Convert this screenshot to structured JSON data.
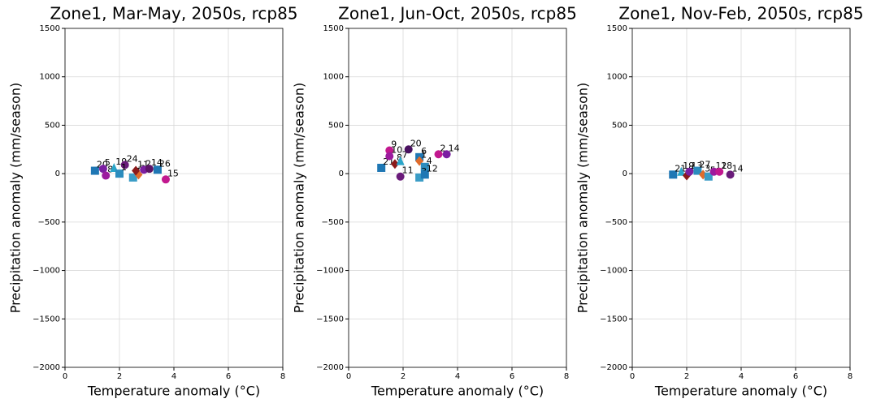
{
  "chart_data": [
    {
      "type": "scatter",
      "title": "Zone1, Mar-May, 2050s, rcp85",
      "x_label": "Temperature anomaly ($^\\circ$C)",
      "y_label": "Precipitation anomaly (mm/season)",
      "xlim": [
        0,
        8
      ],
      "ylim": [
        -2000,
        1500
      ],
      "xticks": [
        0,
        2,
        4,
        6,
        8
      ],
      "yticks": [
        {
          "value": -2000,
          "label": "−2000"
        },
        {
          "value": -1500,
          "label": "−1500"
        },
        {
          "value": -1000,
          "label": "−1000"
        },
        {
          "value": -500,
          "label": "−500"
        },
        0,
        500,
        1000,
        1500
      ],
      "grid": true,
      "points": [
        {
          "label": 20,
          "x": 1.1,
          "y": 30,
          "marker": "s",
          "color": "#1f77b4"
        },
        {
          "label": 5,
          "x": 1.4,
          "y": 50,
          "marker": "o",
          "color": "#7b1fa2"
        },
        {
          "label": 8,
          "x": 1.5,
          "y": -20,
          "marker": "o",
          "color": "#9c1b9e"
        },
        {
          "label": 19,
          "x": 1.8,
          "y": 60,
          "marker": "^",
          "color": "#2aa5c9"
        },
        {
          "label": 24,
          "x": 2.2,
          "y": 90,
          "marker": "o",
          "color": "#6a1b7a"
        },
        {
          "label": 1,
          "x": 2.0,
          "y": 0,
          "marker": "s",
          "color": "#2b8cbe"
        },
        {
          "label": 7,
          "x": 2.5,
          "y": -40,
          "marker": "s",
          "color": "#3a9cc6"
        },
        {
          "label": 3,
          "x": 2.7,
          "y": -10,
          "marker": "D",
          "color": "#e06c2c"
        },
        {
          "label": 11,
          "x": 2.6,
          "y": 30,
          "marker": "D",
          "color": "#8b1a1a"
        },
        {
          "label": 2,
          "x": 2.9,
          "y": 40,
          "marker": "o",
          "color": "#7b1fa2"
        },
        {
          "label": 14,
          "x": 3.1,
          "y": 50,
          "marker": "o",
          "color": "#5b1466"
        },
        {
          "label": 26,
          "x": 3.4,
          "y": 40,
          "marker": "s",
          "color": "#1f77b4"
        },
        {
          "label": 15,
          "x": 3.7,
          "y": -60,
          "marker": "o",
          "color": "#c2188f"
        }
      ]
    },
    {
      "type": "scatter",
      "title": "Zone1, Jun-Oct, 2050s, rcp85",
      "x_label": "Temperature anomaly ($^\\circ$C)",
      "y_label": "Precipitation anomaly (mm/season)",
      "xlim": [
        0,
        8
      ],
      "ylim": [
        -2000,
        1500
      ],
      "xticks": [
        0,
        2,
        4,
        6,
        8
      ],
      "yticks": [
        {
          "value": -2000,
          "label": "−2000"
        },
        {
          "value": -1500,
          "label": "−1500"
        },
        {
          "value": -1000,
          "label": "−1000"
        },
        {
          "value": -500,
          "label": "−500"
        },
        0,
        500,
        1000,
        1500
      ],
      "grid": true,
      "points": [
        {
          "label": 21,
          "x": 1.2,
          "y": 60,
          "marker": "s",
          "color": "#1f77b4"
        },
        {
          "label": 9,
          "x": 1.5,
          "y": 240,
          "marker": "o",
          "color": "#c2188f"
        },
        {
          "label": 10,
          "x": 1.5,
          "y": 180,
          "marker": "o",
          "color": "#9c1b9e"
        },
        {
          "label": 8,
          "x": 1.7,
          "y": 100,
          "marker": "D",
          "color": "#8b1a1a"
        },
        {
          "label": 7,
          "x": 1.9,
          "y": 130,
          "marker": "^",
          "color": "#2aa5c9"
        },
        {
          "label": 11,
          "x": 1.9,
          "y": -30,
          "marker": "o",
          "color": "#6a1b7a"
        },
        {
          "label": 20,
          "x": 2.2,
          "y": 250,
          "marker": "o",
          "color": "#4a1060"
        },
        {
          "label": 6,
          "x": 2.6,
          "y": 170,
          "marker": "s",
          "color": "#1f77b4"
        },
        {
          "label": 1,
          "x": 2.6,
          "y": 130,
          "marker": "D",
          "color": "#e06c2c"
        },
        {
          "label": 4,
          "x": 2.8,
          "y": 70,
          "marker": "s",
          "color": "#2b8cbe"
        },
        {
          "label": 3,
          "x": 2.6,
          "y": -40,
          "marker": "s",
          "color": "#3a9cc6"
        },
        {
          "label": 12,
          "x": 2.8,
          "y": -10,
          "marker": "s",
          "color": "#1f77b4"
        },
        {
          "label": 2,
          "x": 3.3,
          "y": 200,
          "marker": "o",
          "color": "#c2188f"
        },
        {
          "label": 14,
          "x": 3.6,
          "y": 200,
          "marker": "o",
          "color": "#7b1fa2"
        }
      ]
    },
    {
      "type": "scatter",
      "title": "Zone1, Nov-Feb, 2050s, rcp85",
      "x_label": "Temperature anomaly ($^\\circ$C)",
      "y_label": "Precipitation anomaly (mm/season)",
      "xlim": [
        0,
        8
      ],
      "ylim": [
        -2000,
        1500
      ],
      "xticks": [
        0,
        2,
        4,
        6,
        8
      ],
      "yticks": [
        {
          "value": -2000,
          "label": "−2000"
        },
        {
          "value": -1500,
          "label": "−1500"
        },
        {
          "value": -1000,
          "label": "−1000"
        },
        {
          "value": -500,
          "label": "−500"
        },
        0,
        500,
        1000,
        1500
      ],
      "grid": true,
      "points": [
        {
          "label": 21,
          "x": 1.5,
          "y": -10,
          "marker": "s",
          "color": "#1f77b4"
        },
        {
          "label": 19,
          "x": 1.8,
          "y": 20,
          "marker": "^",
          "color": "#2aa5c9"
        },
        {
          "label": 8,
          "x": 2.0,
          "y": -20,
          "marker": "D",
          "color": "#8b1a1a"
        },
        {
          "label": 13,
          "x": 2.1,
          "y": 20,
          "marker": "o",
          "color": "#7b1fa2"
        },
        {
          "label": 27,
          "x": 2.4,
          "y": 30,
          "marker": "s",
          "color": "#2b8cbe"
        },
        {
          "label": 3,
          "x": 2.6,
          "y": -10,
          "marker": "D",
          "color": "#e06c2c"
        },
        {
          "label": 5,
          "x": 2.8,
          "y": -30,
          "marker": "s",
          "color": "#3a9cc6"
        },
        {
          "label": 12,
          "x": 3.0,
          "y": 20,
          "marker": "o",
          "color": "#9c1b9e"
        },
        {
          "label": 18,
          "x": 3.2,
          "y": 20,
          "marker": "o",
          "color": "#c2188f"
        },
        {
          "label": 14,
          "x": 3.6,
          "y": -10,
          "marker": "o",
          "color": "#6a1b7a"
        }
      ]
    }
  ]
}
